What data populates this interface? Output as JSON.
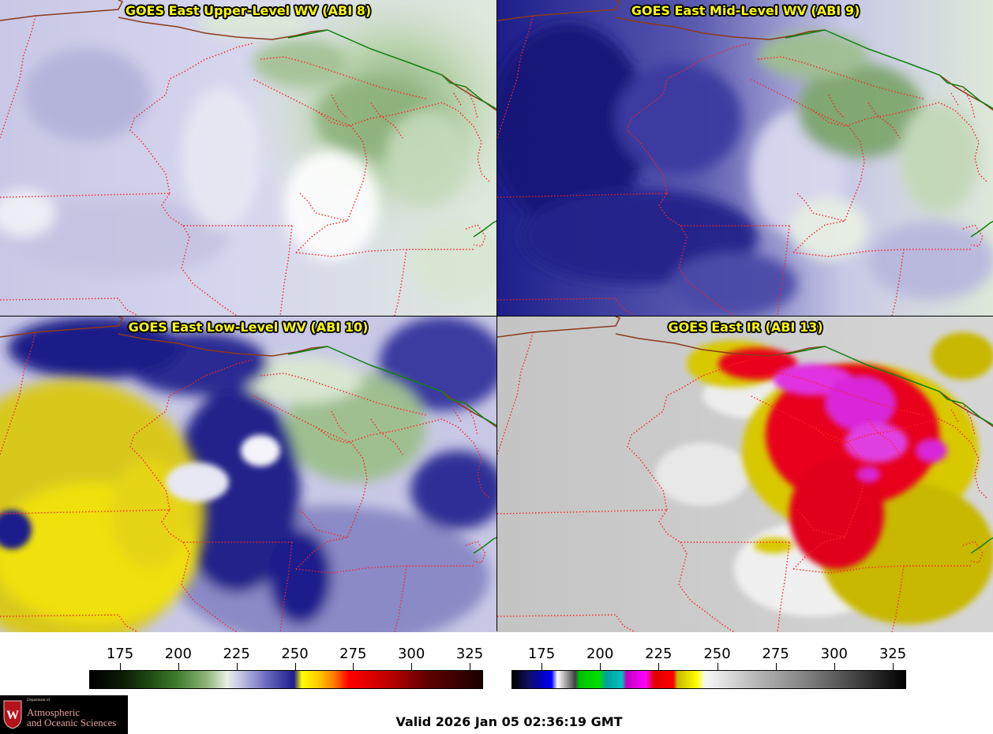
{
  "panels": {
    "upper_left": {
      "title": "GOES East Upper-Level WV (ABI 8)"
    },
    "upper_right": {
      "title": "GOES East Mid-Level WV (ABI 9)"
    },
    "lower_left": {
      "title": "GOES East Low-Level WV (ABI 10)"
    },
    "lower_right": {
      "title": "GOES East IR (ABI 13)"
    }
  },
  "colorbars": {
    "wv": {
      "ticks": [
        "175",
        "200",
        "225",
        "250",
        "275",
        "300",
        "325"
      ]
    },
    "ir": {
      "ticks": [
        "175",
        "200",
        "225",
        "250",
        "275",
        "300",
        "325"
      ]
    }
  },
  "footer": {
    "valid_text": "Valid 2026 Jan 05 02:36:19 GMT"
  },
  "logo": {
    "line1": "Department of",
    "line2": "Atmospheric",
    "line3": "and Oceanic Sciences",
    "crest_letter": "W"
  },
  "colors": {
    "state_borders": "#ff2020",
    "country_border": "#8b3a1a",
    "province_border": "#108010",
    "title_text": "#ffff00",
    "logo_background": "#000000"
  }
}
